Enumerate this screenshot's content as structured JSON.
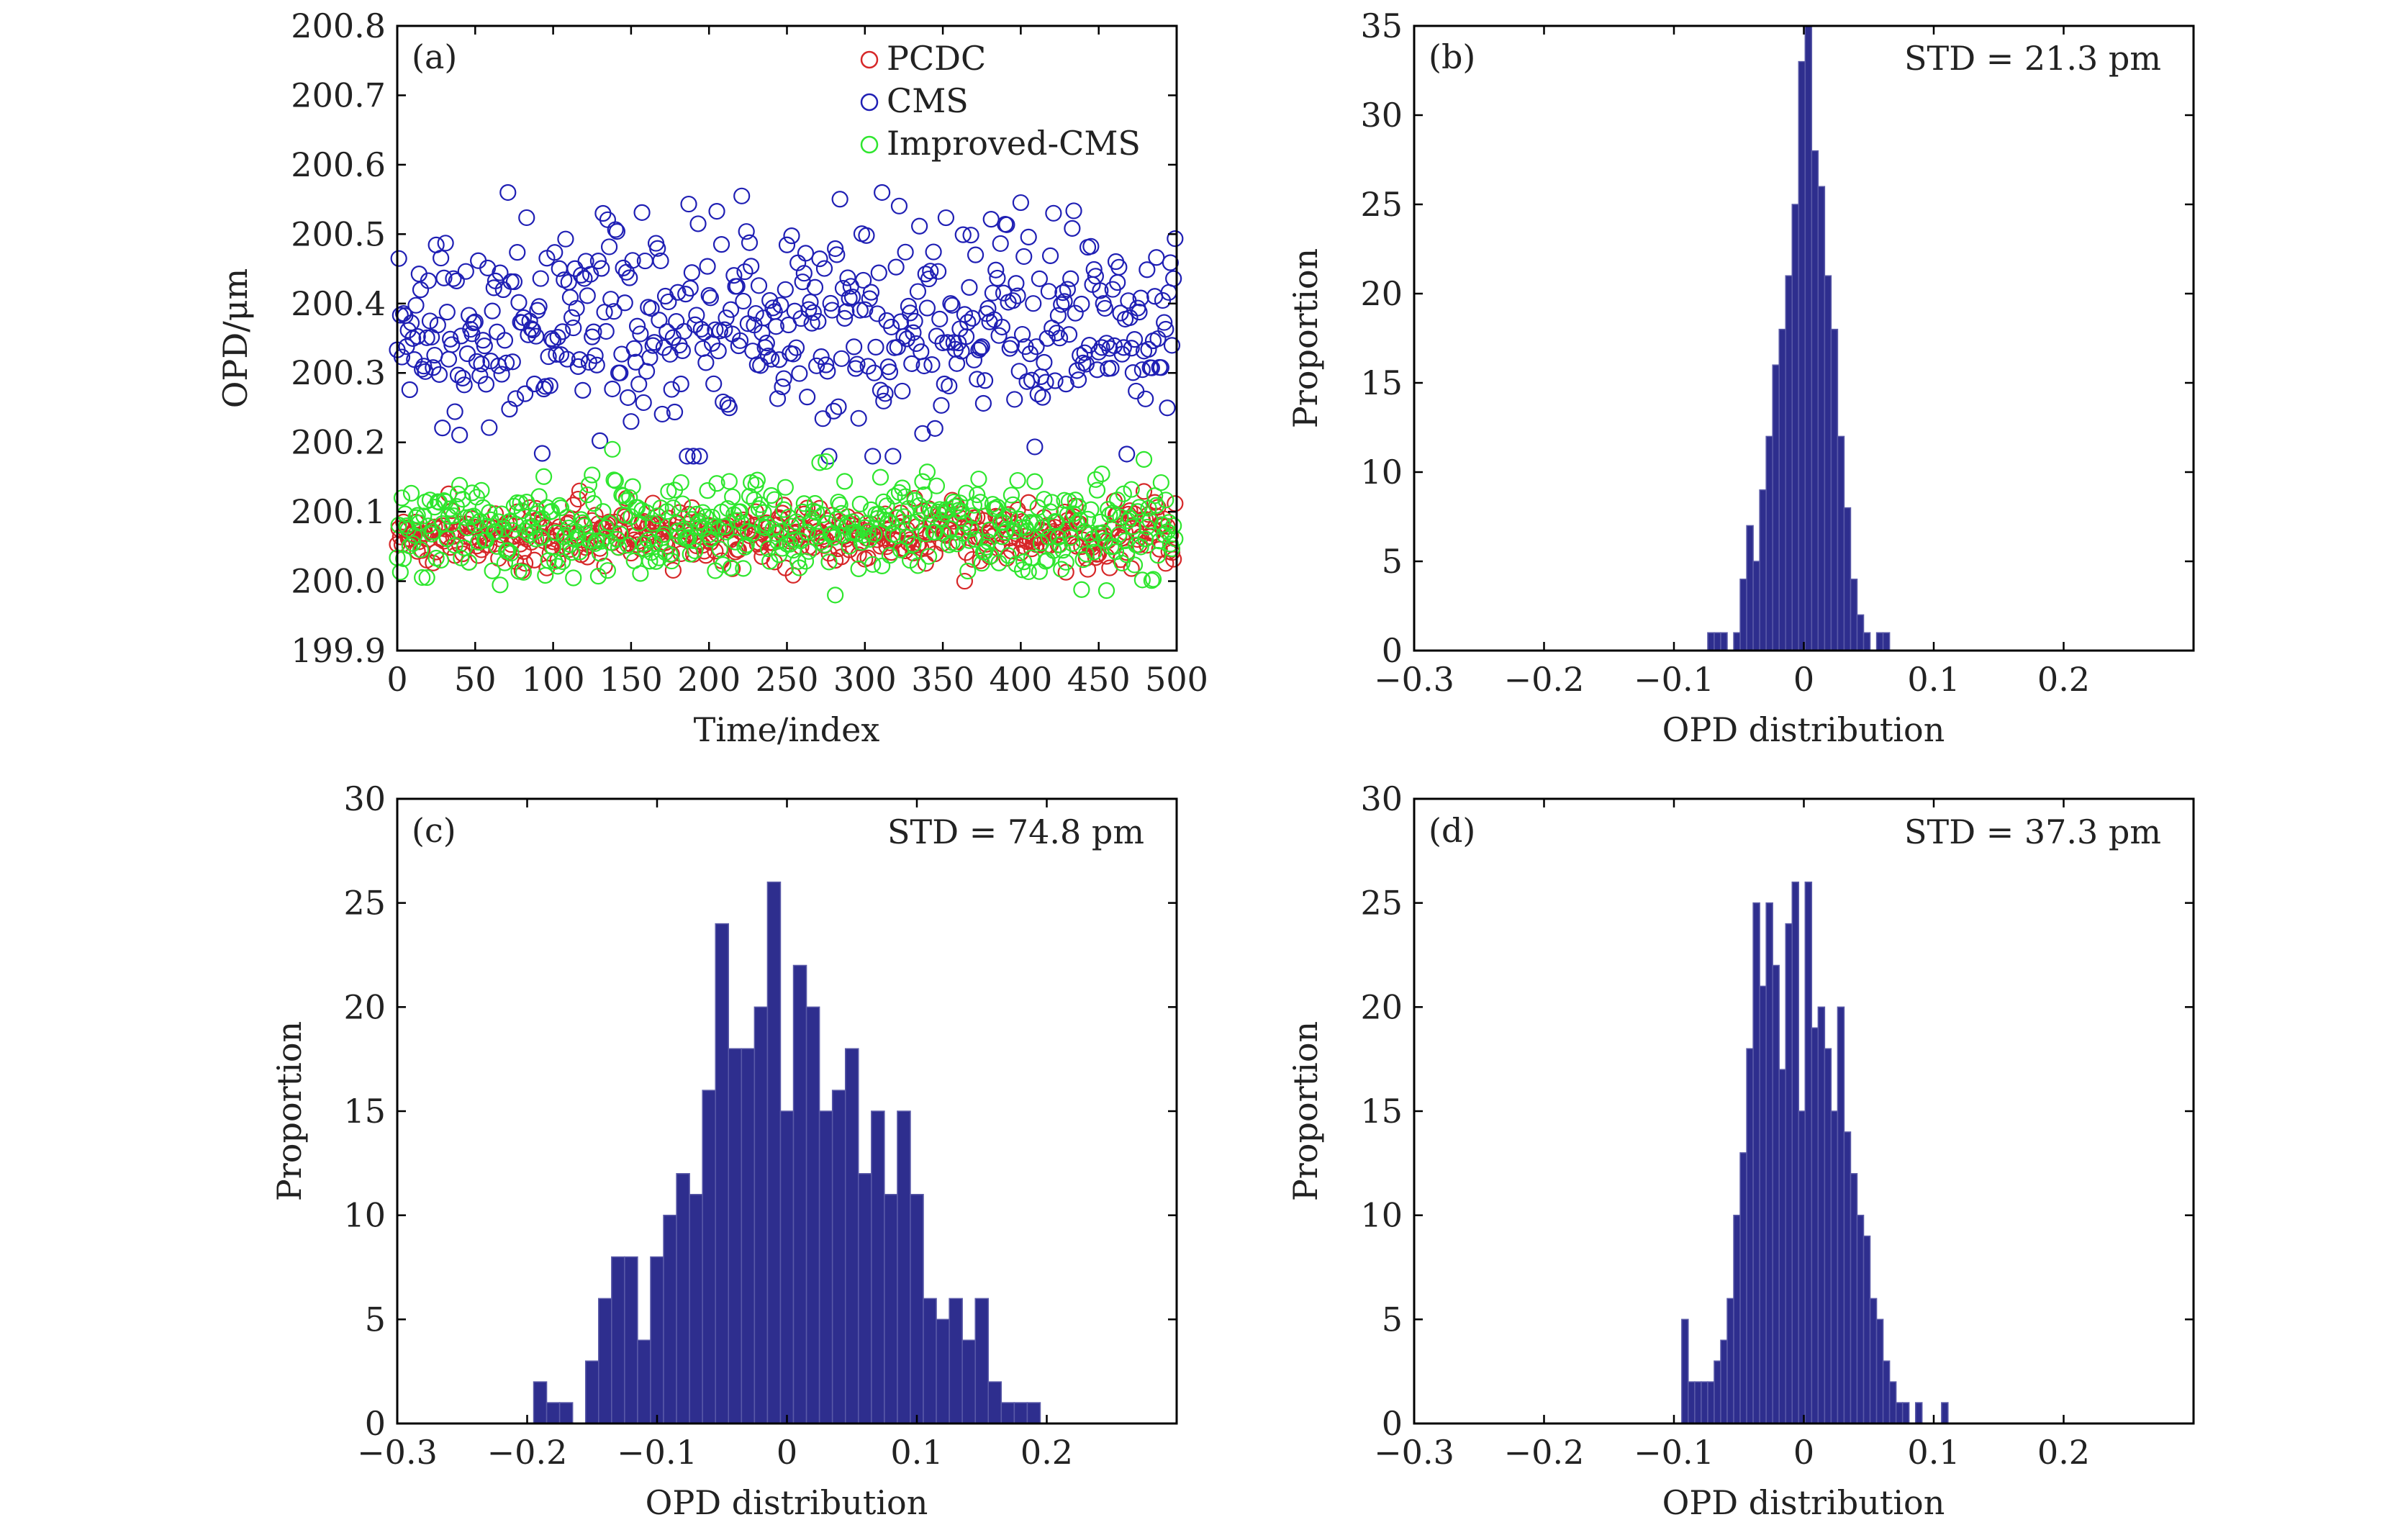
{
  "colors": {
    "pcdc": "#d62728",
    "cms": "#1f1fb4",
    "improved_cms": "#2ee62e",
    "histogram_fill": "#2e2e8e",
    "histogram_edge": "#5a5aa8"
  },
  "chart_data": [
    {
      "id": "a",
      "type": "scatter",
      "panel_label": "(a)",
      "xlabel": "Time/index",
      "ylabel": "OPD/μm",
      "xlim": [
        0,
        500
      ],
      "ylim": [
        199.9,
        200.8
      ],
      "xticks": [
        "0",
        "50",
        "100",
        "150",
        "200",
        "250",
        "300",
        "350",
        "400",
        "450",
        "500"
      ],
      "yticks": [
        "199.9",
        "200.0",
        "200.1",
        "200.2",
        "200.3",
        "200.4",
        "200.5",
        "200.6",
        "200.7",
        "200.8"
      ],
      "legend_position": "top-right",
      "grid": false,
      "series": [
        {
          "name": "PCDC",
          "marker": "open-circle",
          "n_points": 500,
          "mean": 200.068,
          "std": 0.0213,
          "min": 200.0,
          "max": 200.13
        },
        {
          "name": "CMS",
          "marker": "open-circle",
          "n_points": 500,
          "mean": 200.37,
          "std": 0.0748,
          "min": 200.18,
          "max": 200.56
        },
        {
          "name": "Improved-CMS",
          "marker": "open-circle",
          "n_points": 500,
          "mean": 200.075,
          "std": 0.0373,
          "min": 199.98,
          "max": 200.19
        }
      ]
    },
    {
      "id": "b",
      "type": "bar",
      "panel_label": "(b)",
      "annotation": "STD = 21.3 pm",
      "xlabel": "OPD distribution",
      "ylabel": "Proportion",
      "xlim": [
        -0.3,
        0.3
      ],
      "ylim": [
        0,
        35
      ],
      "xticks": [
        "−0.3",
        "−0.2",
        "−0.1",
        "0",
        "0.1",
        "0.2"
      ],
      "yticks": [
        "0",
        "5",
        "10",
        "15",
        "20",
        "25",
        "30",
        "35"
      ],
      "grid": false,
      "bins": [
        [
          -0.074,
          -0.069,
          1
        ],
        [
          -0.069,
          -0.064,
          1
        ],
        [
          -0.064,
          -0.059,
          1
        ],
        [
          -0.054,
          -0.049,
          1
        ],
        [
          -0.049,
          -0.044,
          4
        ],
        [
          -0.044,
          -0.039,
          7
        ],
        [
          -0.039,
          -0.034,
          5
        ],
        [
          -0.034,
          -0.029,
          9
        ],
        [
          -0.029,
          -0.024,
          12
        ],
        [
          -0.024,
          -0.019,
          16
        ],
        [
          -0.019,
          -0.014,
          18
        ],
        [
          -0.014,
          -0.009,
          21
        ],
        [
          -0.009,
          -0.004,
          25
        ],
        [
          -0.004,
          0.001,
          33
        ],
        [
          0.001,
          0.006,
          35
        ],
        [
          0.006,
          0.011,
          28
        ],
        [
          0.011,
          0.016,
          26
        ],
        [
          0.016,
          0.021,
          21
        ],
        [
          0.021,
          0.026,
          18
        ],
        [
          0.026,
          0.031,
          12
        ],
        [
          0.031,
          0.036,
          8
        ],
        [
          0.036,
          0.041,
          4
        ],
        [
          0.041,
          0.046,
          2
        ],
        [
          0.046,
          0.051,
          1
        ],
        [
          0.056,
          0.061,
          1
        ],
        [
          0.061,
          0.066,
          1
        ]
      ]
    },
    {
      "id": "c",
      "type": "bar",
      "panel_label": "(c)",
      "annotation": "STD = 74.8 pm",
      "xlabel": "OPD distribution",
      "ylabel": "Proportion",
      "xlim": [
        -0.3,
        0.3
      ],
      "ylim": [
        0,
        30
      ],
      "xticks": [
        "−0.3",
        "−0.2",
        "−0.1",
        "0",
        "0.1",
        "0.2"
      ],
      "yticks": [
        "0",
        "5",
        "10",
        "15",
        "20",
        "25",
        "30"
      ],
      "grid": false,
      "bins": [
        [
          -0.195,
          -0.185,
          2
        ],
        [
          -0.185,
          -0.175,
          1
        ],
        [
          -0.175,
          -0.165,
          1
        ],
        [
          -0.155,
          -0.145,
          3
        ],
        [
          -0.145,
          -0.135,
          6
        ],
        [
          -0.135,
          -0.125,
          8
        ],
        [
          -0.125,
          -0.115,
          8
        ],
        [
          -0.115,
          -0.105,
          4
        ],
        [
          -0.105,
          -0.095,
          8
        ],
        [
          -0.095,
          -0.085,
          10
        ],
        [
          -0.085,
          -0.075,
          12
        ],
        [
          -0.075,
          -0.065,
          11
        ],
        [
          -0.065,
          -0.055,
          16
        ],
        [
          -0.055,
          -0.045,
          24
        ],
        [
          -0.045,
          -0.035,
          18
        ],
        [
          -0.035,
          -0.025,
          18
        ],
        [
          -0.025,
          -0.015,
          20
        ],
        [
          -0.015,
          -0.005,
          26
        ],
        [
          -0.005,
          0.005,
          15
        ],
        [
          0.005,
          0.015,
          22
        ],
        [
          0.015,
          0.025,
          20
        ],
        [
          0.025,
          0.035,
          15
        ],
        [
          0.035,
          0.045,
          16
        ],
        [
          0.045,
          0.055,
          18
        ],
        [
          0.055,
          0.065,
          12
        ],
        [
          0.065,
          0.075,
          15
        ],
        [
          0.075,
          0.085,
          11
        ],
        [
          0.085,
          0.095,
          15
        ],
        [
          0.095,
          0.105,
          11
        ],
        [
          0.105,
          0.115,
          6
        ],
        [
          0.115,
          0.125,
          5
        ],
        [
          0.125,
          0.135,
          6
        ],
        [
          0.135,
          0.145,
          4
        ],
        [
          0.145,
          0.155,
          6
        ],
        [
          0.155,
          0.165,
          2
        ],
        [
          0.165,
          0.175,
          1
        ],
        [
          0.175,
          0.185,
          1
        ],
        [
          0.185,
          0.195,
          1
        ]
      ]
    },
    {
      "id": "d",
      "type": "bar",
      "panel_label": "(d)",
      "annotation": "STD = 37.3 pm",
      "xlabel": "OPD distribution",
      "ylabel": "Proportion",
      "xlim": [
        -0.3,
        0.3
      ],
      "ylim": [
        0,
        30
      ],
      "xticks": [
        "−0.3",
        "−0.2",
        "−0.1",
        "0",
        "0.1",
        "0.2"
      ],
      "yticks": [
        "0",
        "5",
        "10",
        "15",
        "20",
        "25",
        "30"
      ],
      "grid": false,
      "bins": [
        [
          -0.094,
          -0.089,
          5
        ],
        [
          -0.089,
          -0.084,
          2
        ],
        [
          -0.084,
          -0.079,
          2
        ],
        [
          -0.079,
          -0.074,
          2
        ],
        [
          -0.074,
          -0.069,
          2
        ],
        [
          -0.069,
          -0.064,
          3
        ],
        [
          -0.064,
          -0.059,
          4
        ],
        [
          -0.059,
          -0.054,
          6
        ],
        [
          -0.054,
          -0.049,
          10
        ],
        [
          -0.049,
          -0.044,
          13
        ],
        [
          -0.044,
          -0.039,
          18
        ],
        [
          -0.039,
          -0.034,
          25
        ],
        [
          -0.034,
          -0.029,
          21
        ],
        [
          -0.029,
          -0.024,
          25
        ],
        [
          -0.024,
          -0.019,
          22
        ],
        [
          -0.019,
          -0.014,
          17
        ],
        [
          -0.014,
          -0.009,
          24
        ],
        [
          -0.009,
          -0.004,
          26
        ],
        [
          -0.004,
          0.001,
          15
        ],
        [
          0.001,
          0.006,
          26
        ],
        [
          0.006,
          0.011,
          19
        ],
        [
          0.011,
          0.016,
          20
        ],
        [
          0.016,
          0.021,
          18
        ],
        [
          0.021,
          0.026,
          15
        ],
        [
          0.026,
          0.031,
          20
        ],
        [
          0.031,
          0.036,
          14
        ],
        [
          0.036,
          0.041,
          12
        ],
        [
          0.041,
          0.046,
          10
        ],
        [
          0.046,
          0.051,
          9
        ],
        [
          0.051,
          0.056,
          6
        ],
        [
          0.056,
          0.061,
          5
        ],
        [
          0.061,
          0.066,
          3
        ],
        [
          0.066,
          0.071,
          2
        ],
        [
          0.071,
          0.076,
          1
        ],
        [
          0.076,
          0.081,
          1
        ],
        [
          0.086,
          0.091,
          1
        ],
        [
          0.106,
          0.111,
          1
        ]
      ]
    }
  ]
}
